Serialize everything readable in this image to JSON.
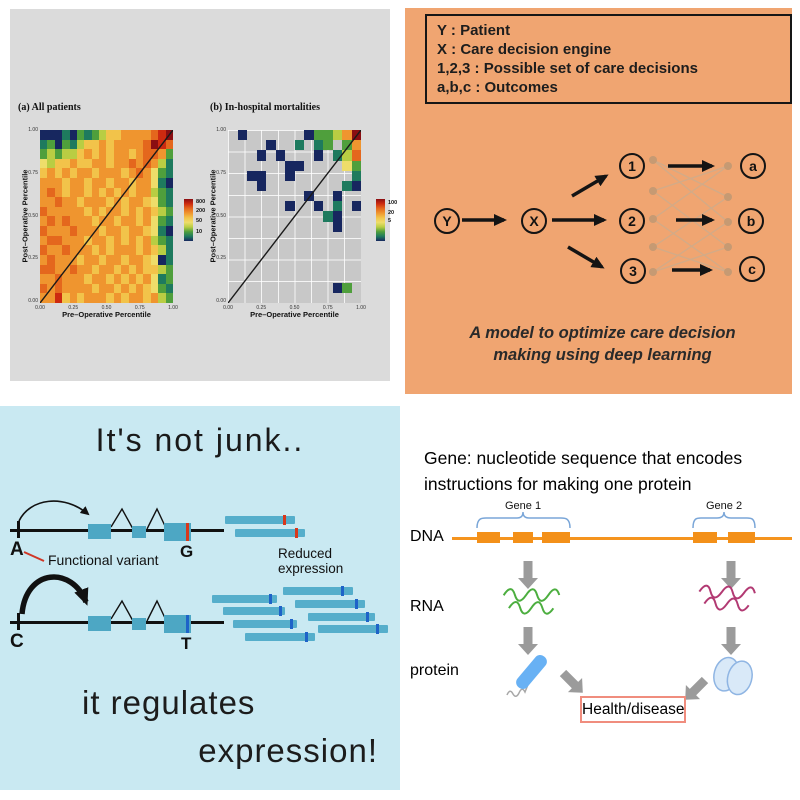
{
  "chart_data": [
    {
      "type": "heatmap",
      "title": "(a) All patients",
      "xlabel": "Pre–Operative Percentile",
      "ylabel": "Post–Operative Percentile",
      "x_range": [
        0,
        1
      ],
      "y_range": [
        0,
        1
      ],
      "x_ticks": [
        "0.00",
        "0.25",
        "0.50",
        "0.75",
        "1.00"
      ],
      "y_ticks": [
        "1.00",
        "0.75",
        "0.50",
        "0.25",
        "0.00"
      ],
      "legend_labels": [
        "800",
        "200",
        "50",
        "10"
      ],
      "legend_scale_top_to_bottom": [
        "#8a0e12",
        "#cd2a10",
        "#e4671d",
        "#ef952f",
        "#f2c34a",
        "#eedd6a",
        "#b9cd43",
        "#4f9f3c",
        "#1e7a5e",
        "#17275f"
      ],
      "palette": {
        "d": "#8a0e12",
        "r": "#cd2a10",
        "q": "#e4671d",
        "o": "#ef952f",
        "y": "#f2c34a",
        "w": "#eedd6a",
        "l": "#b9cd43",
        "g": "#4f9f3c",
        "t": "#1e7a5e",
        "b": "#17275f"
      },
      "scale_note": "d=highest count (~800), b=lowest (~10); diagonal identity line drawn bottom-left to top-right",
      "cell_codes": [
        "bbbtbgtglyyooooqrd",
        "tgbgtlyyoyooooqdrq",
        "glgllyoyoyooyoqqog",
        "wlyyoyyooyooqoqolt",
        "yoyoyooyoooyoqowgt",
        "oooyooyooyooyoowtb",
        "oqoyooyoyoyoyoolgt",
        "ooqooyoooyoyooywgt",
        "qoooooyoyooyoyoylg",
        "oqoqoooyooyooyowgt",
        "qoooqoooyooyooywtb",
        "oqqoooyooyoyoyolgt",
        "qooqoooyoyoooyoylt",
        "oqoooyooyooyooywbt",
        "qqooqooyooyoyoyylg",
        "ooqoooyooyoyoyowtg",
        "qoqooooyooyoyoywgt",
        "ooryoyoooyoyooyolg"
      ]
    },
    {
      "type": "heatmap",
      "title": "(b) In-hospital mortalities",
      "xlabel": "Pre–Operative Percentile",
      "ylabel": "Post–Operative Percentile",
      "x_range": [
        0,
        1
      ],
      "y_range": [
        0,
        1
      ],
      "x_ticks": [
        "0.00",
        "0.25",
        "0.50",
        "0.75",
        "1.00"
      ],
      "y_ticks": [
        "1.00",
        "0.75",
        "0.50",
        "0.25",
        "0.00"
      ],
      "legend_labels": [
        "100",
        "20",
        "5"
      ],
      "legend_scale_top_to_bottom": [
        "#8a0e12",
        "#cd2a10",
        "#e4671d",
        "#ef952f",
        "#f2c34a",
        "#eedd6a",
        "#b9cd43",
        "#4f9f3c",
        "#1e7a5e",
        "#17275f"
      ],
      "palette": {
        "d": "#8a0e12",
        "r": "#cd2a10",
        "q": "#e4671d",
        "o": "#ef952f",
        "y": "#f2c34a",
        "w": "#eedd6a",
        "l": "#b9cd43",
        "g": "#4f9f3c",
        "t": "#1e7a5e",
        "b": "#17275f"
      },
      "scale_note": "mostly empty gray cells; sparse navy cells above diagonal, warm cluster at top-right corner",
      "cell_codes": [
        ".b......bgglod",
        "....b..t.tg.go",
        "...b.b...b.tlq",
        "......bb....wg",
        "..bb..b......t",
        "...b........tb",
        "........b..b..",
        "......b..b.t.b",
        "..........tb..",
        "...........b..",
        "..............",
        "..............",
        "..............",
        "..............",
        "..............",
        "...........bg.",
        ".............."
      ]
    }
  ],
  "care_panel": {
    "bg": "#f0a571",
    "legend_lines": [
      "Y : Patient",
      "X : Care decision engine",
      "1,2,3 : Possible set of care decisions",
      "a,b,c : Outcomes"
    ],
    "nodes": {
      "y": "Y",
      "x": "X",
      "d1": "1",
      "d2": "2",
      "d3": "3",
      "o1": "a",
      "o2": "b",
      "o3": "c"
    },
    "caption_1": "A model to optimize care decision",
    "caption_2": "making using deep learning"
  },
  "junk_panel": {
    "bg": "#c9e9f2",
    "title": "It's not junk..",
    "alleles": {
      "top_left": "A",
      "top_right": "G",
      "bottom_left": "C",
      "bottom_right": "T"
    },
    "variant_label": "Functional variant",
    "reduced_label": "Reduced  expression",
    "tagline_1": "it regulates",
    "tagline_2": "expression!",
    "exon_color": "#4da7c4",
    "variant_red": "#d8381c",
    "variant_blue": "#1e63c8"
  },
  "gene_panel": {
    "title_1": "Gene: nucleotide sequence that encodes",
    "title_2": "instructions for making one protein",
    "gene1": "Gene 1",
    "gene2": "Gene 2",
    "dna": "DNA",
    "rna": "RNA",
    "protein": "protein",
    "outcome": "Health/disease",
    "dna_color": "#f5941e",
    "rna1_color": "#4cae3f",
    "rna2_color": "#b23a73",
    "arrow_color": "#9b9b9b"
  }
}
